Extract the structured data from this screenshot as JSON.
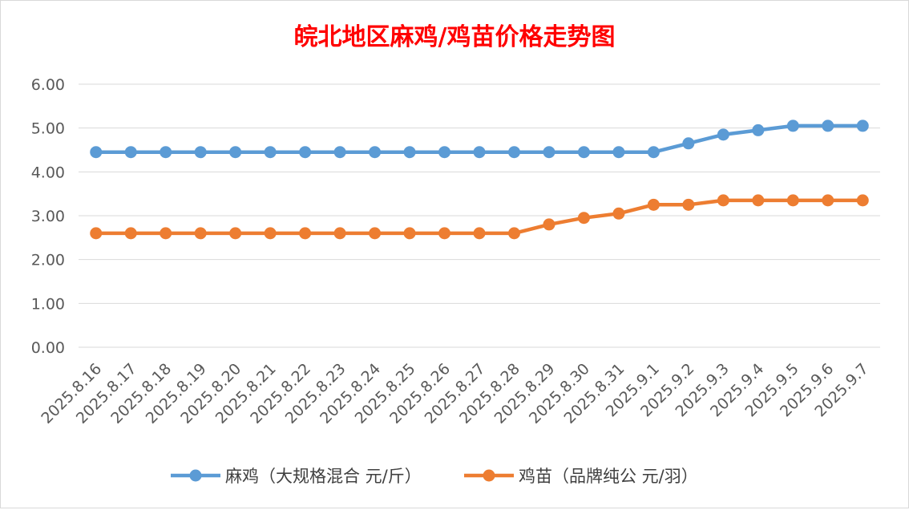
{
  "chart_data": {
    "type": "line",
    "title": "皖北地区麻鸡/鸡苗价格走势图",
    "title_color": "#ff0000",
    "xlabel": "",
    "ylabel": "",
    "ylim": [
      0,
      6
    ],
    "y_ticks": [
      "0.00",
      "1.00",
      "2.00",
      "3.00",
      "4.00",
      "5.00",
      "6.00"
    ],
    "grid": true,
    "legend_position": "bottom",
    "categories": [
      "2025.8.16",
      "2025.8.17",
      "2025.8.18",
      "2025.8.19",
      "2025.8.20",
      "2025.8.21",
      "2025.8.22",
      "2025.8.23",
      "2025.8.24",
      "2025.8.25",
      "2025.8.26",
      "2025.8.27",
      "2025.8.28",
      "2025.8.29",
      "2025.8.30",
      "2025.8.31",
      "2025.9.1",
      "2025.9.2",
      "2025.9.3",
      "2025.9.4",
      "2025.9.5",
      "2025.9.6",
      "2025.9.7"
    ],
    "series": [
      {
        "name": "麻鸡（大规格混合 元/斤）",
        "color": "#5b9bd5",
        "values": [
          4.45,
          4.45,
          4.45,
          4.45,
          4.45,
          4.45,
          4.45,
          4.45,
          4.45,
          4.45,
          4.45,
          4.45,
          4.45,
          4.45,
          4.45,
          4.45,
          4.45,
          4.65,
          4.85,
          4.95,
          5.05,
          5.05,
          5.05
        ]
      },
      {
        "name": "鸡苗（品牌纯公 元/羽）",
        "color": "#ed7d31",
        "values": [
          2.6,
          2.6,
          2.6,
          2.6,
          2.6,
          2.6,
          2.6,
          2.6,
          2.6,
          2.6,
          2.6,
          2.6,
          2.6,
          2.8,
          2.95,
          3.05,
          3.25,
          3.25,
          3.35,
          3.35,
          3.35,
          3.35,
          3.35
        ]
      }
    ]
  }
}
